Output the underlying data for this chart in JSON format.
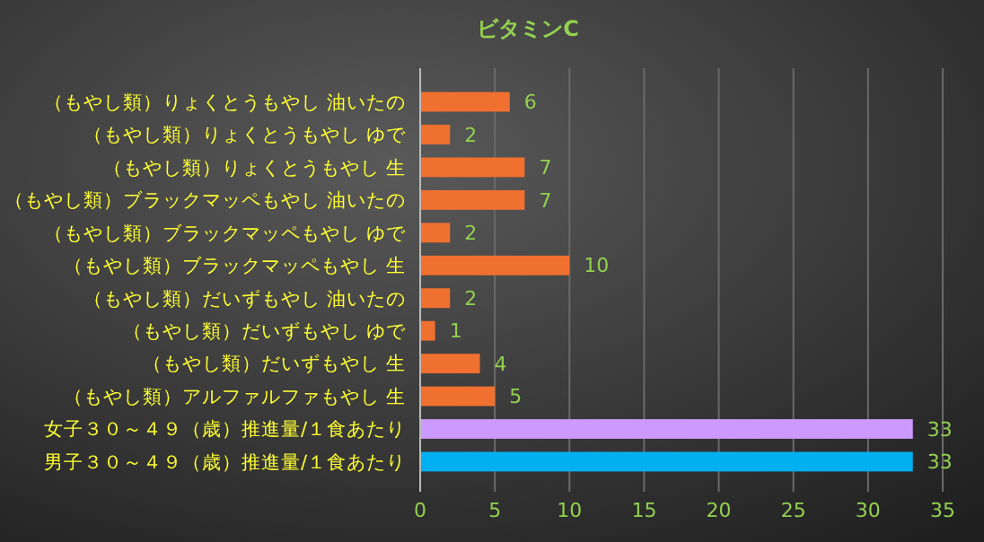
{
  "chart_data": {
    "type": "bar",
    "orientation": "horizontal",
    "title": "ビタミンC",
    "categories": [
      "（もやし類）りょくとうもやし 油いたの",
      "（もやし類）りょくとうもやし ゆで",
      "（もやし類）りょくとうもやし 生",
      "（もやし類）ブラックマッペもやし 油いたの",
      "（もやし類）ブラックマッペもやし ゆで",
      "（もやし類）ブラックマッペもやし 生",
      "（もやし類）だいずもやし 油いたの",
      "（もやし類）だいずもやし ゆで",
      "（もやし類）だいずもやし 生",
      "（もやし類）アルファルファもやし 生",
      "女子３０～４９（歳）推進量/１食あたり",
      "男子３０～４９（歳）推進量/１食あたり"
    ],
    "values": [
      6,
      2,
      7,
      7,
      2,
      10,
      2,
      1,
      4,
      5,
      33,
      33
    ],
    "colors": [
      "#f07030",
      "#f07030",
      "#f07030",
      "#f07030",
      "#f07030",
      "#f07030",
      "#f07030",
      "#f07030",
      "#f07030",
      "#f07030",
      "#cc99ff",
      "#00b0f0"
    ],
    "xlim": [
      0,
      35
    ],
    "xticks": [
      0,
      5,
      10,
      15,
      20,
      25,
      30,
      35
    ],
    "grid": "x",
    "data_labels": true
  }
}
